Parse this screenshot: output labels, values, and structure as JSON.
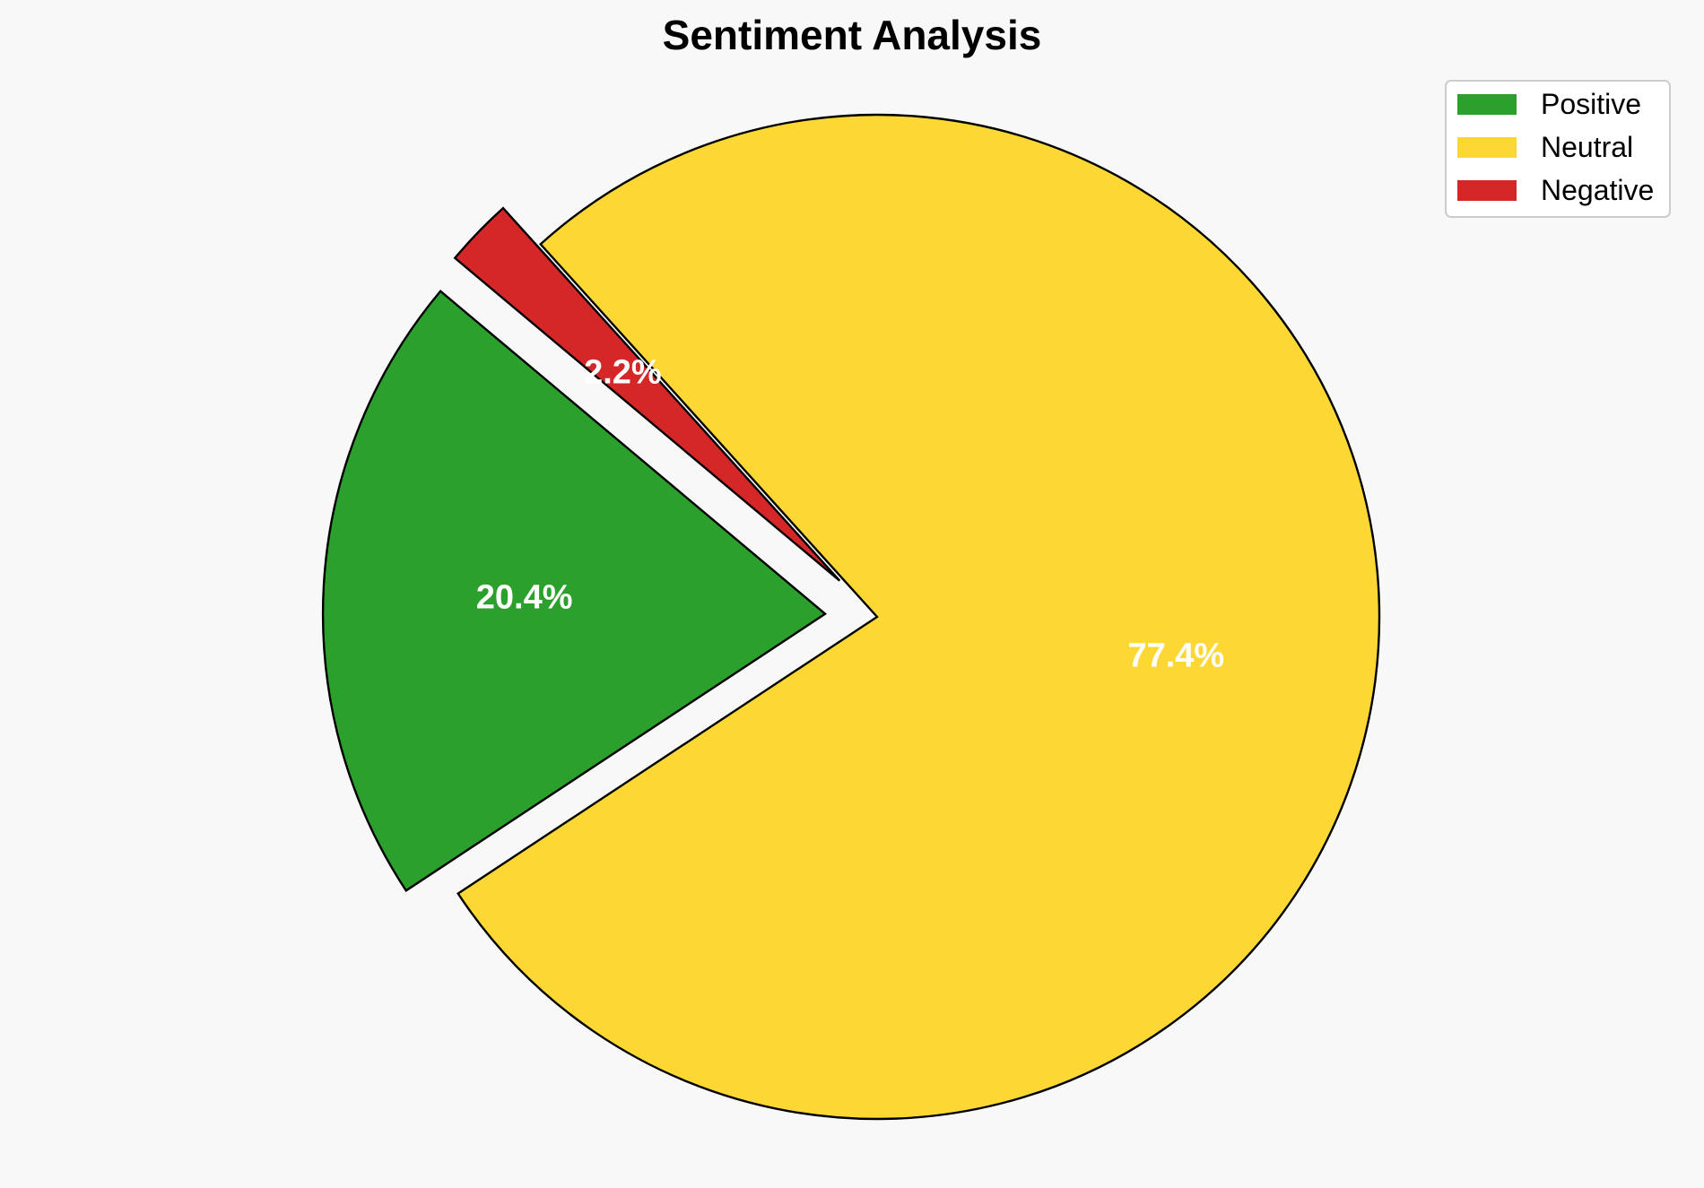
{
  "chart_data": {
    "type": "pie",
    "title": "Sentiment Analysis",
    "categories": [
      "Positive",
      "Neutral",
      "Negative"
    ],
    "values": [
      20.4,
      77.4,
      2.2
    ],
    "labels": [
      "20.4%",
      "77.4%",
      "2.2%"
    ],
    "colors": [
      "#2ca02c",
      "#fdd835",
      "#d62728"
    ],
    "exploded": [
      true,
      false,
      true
    ],
    "start_angle_deg": 140,
    "direction": "counterclockwise",
    "legend_position": "top-right",
    "edge_color": "#000000",
    "label_color": "#ffffff",
    "background": "#f8f8f8"
  }
}
